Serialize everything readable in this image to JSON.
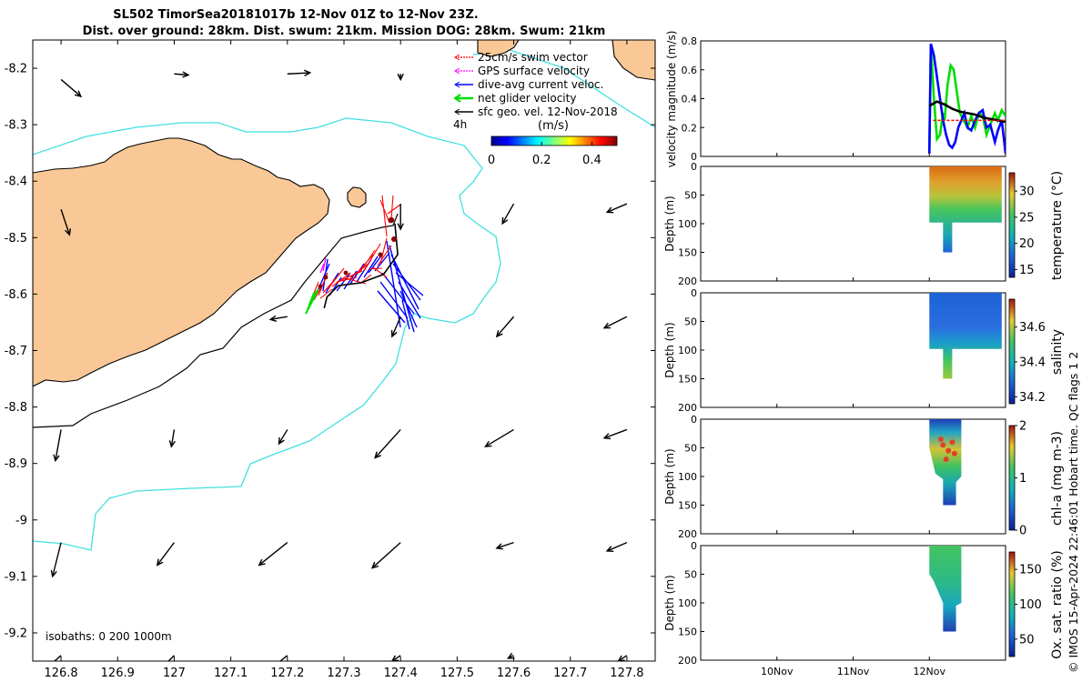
{
  "title_line1": "SL502 TimorSea20181017b 12-Nov 01Z to 12-Nov 23Z.",
  "title_line2": "Dist. over ground: 28km. Dist. swum: 21km. Mission DOG: 28km. Swum: 21km",
  "copyright": "© IMOS 15-Apr-2024 22:46:01 Hobart time. QC flags 1  2",
  "colors": {
    "land": "#f9c896",
    "coast": "#000000",
    "isobath_200": "#000000",
    "isobath_1000": "#40e0e0",
    "swim": "#ff0000",
    "gps": "#ff00ff",
    "current": "#0000ff",
    "net": "#00dd00",
    "geo": "#000000"
  },
  "chart_data": [
    {
      "type": "scatter",
      "name": "map",
      "x_ticks": [
        "126.8",
        "126.9",
        "127",
        "127.1",
        "127.2",
        "127.3",
        "127.4",
        "127.5",
        "127.6",
        "127.7",
        "127.8"
      ],
      "y_ticks": [
        "-8.2",
        "-8.3",
        "-8.4",
        "-8.5",
        "-8.6",
        "-8.7",
        "-8.8",
        "-8.9",
        "-9",
        "-9.1",
        "-9.2"
      ],
      "xlim": [
        126.75,
        127.85
      ],
      "ylim": [
        -9.25,
        -8.15
      ],
      "legend": {
        "placement": "top-right",
        "items": [
          {
            "label": "25cm/s swim vector",
            "color": "#ff0000"
          },
          {
            "label": "GPS surface velocity",
            "color": "#ff00ff"
          },
          {
            "label": "dive-avg current veloc.",
            "color": "#0000ff"
          },
          {
            "label": "net glider velocity",
            "color": "#00dd00"
          },
          {
            "label": "sfc geo. vel. 12-Nov-2018",
            "color": "#000000"
          }
        ],
        "duration_label": "4h",
        "colorbar_unit": "(m/s)",
        "colorbar_ticks": [
          "0",
          "0.2",
          "0.4"
        ],
        "colorbar_range": [
          0,
          0.5
        ]
      },
      "isobaths_label": "isobaths: 0   200  1000m",
      "geo_vectors": [
        {
          "lon": 126.8,
          "lat": -8.22,
          "dlon": 0.035,
          "dlat": -0.03
        },
        {
          "lon": 127.0,
          "lat": -8.21,
          "dlon": 0.025,
          "dlat": -0.002
        },
        {
          "lon": 127.2,
          "lat": -8.21,
          "dlon": 0.04,
          "dlat": 0.002
        },
        {
          "lon": 127.4,
          "lat": -8.21,
          "dlon": 0.0,
          "dlat": -0.01
        },
        {
          "lon": 126.8,
          "lat": -8.45,
          "dlon": 0.015,
          "dlat": -0.045
        },
        {
          "lon": 127.4,
          "lat": -8.44,
          "dlon": 0.0,
          "dlat": -0.045
        },
        {
          "lon": 127.6,
          "lat": -8.44,
          "dlon": -0.02,
          "dlat": -0.035
        },
        {
          "lon": 127.8,
          "lat": -8.44,
          "dlon": -0.035,
          "dlat": -0.015
        },
        {
          "lon": 127.2,
          "lat": -8.64,
          "dlon": -0.03,
          "dlat": -0.005
        },
        {
          "lon": 127.4,
          "lat": -8.64,
          "dlon": -0.015,
          "dlat": -0.035
        },
        {
          "lon": 127.6,
          "lat": -8.64,
          "dlon": -0.03,
          "dlat": -0.035
        },
        {
          "lon": 127.8,
          "lat": -8.64,
          "dlon": -0.04,
          "dlat": -0.02
        },
        {
          "lon": 126.8,
          "lat": -8.84,
          "dlon": -0.01,
          "dlat": -0.055
        },
        {
          "lon": 127.0,
          "lat": -8.84,
          "dlon": -0.005,
          "dlat": -0.03
        },
        {
          "lon": 127.2,
          "lat": -8.84,
          "dlon": -0.015,
          "dlat": -0.025
        },
        {
          "lon": 127.4,
          "lat": -8.84,
          "dlon": -0.045,
          "dlat": -0.05
        },
        {
          "lon": 127.6,
          "lat": -8.84,
          "dlon": -0.05,
          "dlat": -0.03
        },
        {
          "lon": 127.8,
          "lat": -8.84,
          "dlon": -0.04,
          "dlat": -0.015
        },
        {
          "lon": 126.8,
          "lat": -9.04,
          "dlon": -0.015,
          "dlat": -0.06
        },
        {
          "lon": 127.0,
          "lat": -9.04,
          "dlon": -0.03,
          "dlat": -0.04
        },
        {
          "lon": 127.2,
          "lat": -9.04,
          "dlon": -0.05,
          "dlat": -0.04
        },
        {
          "lon": 127.4,
          "lat": -9.04,
          "dlon": -0.05,
          "dlat": -0.045
        },
        {
          "lon": 127.6,
          "lat": -9.04,
          "dlon": -0.03,
          "dlat": -0.01
        },
        {
          "lon": 127.8,
          "lat": -9.04,
          "dlon": -0.035,
          "dlat": -0.015
        },
        {
          "lon": 126.8,
          "lat": -9.24,
          "dlon": -0.04,
          "dlat": -0.035
        },
        {
          "lon": 127.0,
          "lat": -9.24,
          "dlon": -0.05,
          "dlat": -0.05
        },
        {
          "lon": 127.2,
          "lat": -9.24,
          "dlon": -0.05,
          "dlat": -0.04
        },
        {
          "lon": 127.4,
          "lat": -9.24,
          "dlon": -0.015,
          "dlat": -0.01
        },
        {
          "lon": 127.6,
          "lat": -9.24,
          "dlon": -0.01,
          "dlat": -0.005
        },
        {
          "lon": 127.8,
          "lat": -9.24,
          "dlon": -0.015,
          "dlat": -0.01
        }
      ],
      "glider_track": [
        {
          "lon": 127.39,
          "lat": -8.475
        },
        {
          "lon": 127.395,
          "lat": -8.53
        },
        {
          "lon": 127.37,
          "lat": -8.565
        },
        {
          "lon": 127.33,
          "lat": -8.58
        },
        {
          "lon": 127.29,
          "lat": -8.585
        },
        {
          "lon": 127.27,
          "lat": -8.605
        },
        {
          "lon": 127.265,
          "lat": -8.625
        }
      ]
    },
    {
      "type": "line",
      "name": "velocity",
      "ylabel": "velocity magnitude (m/s)",
      "ylim": [
        0,
        0.8
      ],
      "y_ticks": [
        "0",
        "0.2",
        "0.4",
        "0.6",
        "0.8"
      ],
      "x_ticks": [
        "10Nov",
        "11Nov",
        "12Nov"
      ],
      "xlim": [
        9.0,
        13.0
      ],
      "series": [
        {
          "color": "#00dd00",
          "x": [
            12.0,
            12.02,
            12.06,
            12.1,
            12.14,
            12.18,
            12.2,
            12.24,
            12.28,
            12.32,
            12.36,
            12.4,
            12.45,
            12.5,
            12.55,
            12.6,
            12.65,
            12.7,
            12.75,
            12.8,
            12.86,
            12.9,
            12.95,
            13.0
          ],
          "y": [
            0.02,
            0.78,
            0.4,
            0.12,
            0.15,
            0.3,
            0.25,
            0.5,
            0.63,
            0.6,
            0.45,
            0.3,
            0.25,
            0.2,
            0.28,
            0.2,
            0.3,
            0.28,
            0.15,
            0.22,
            0.3,
            0.25,
            0.32,
            0.28
          ]
        },
        {
          "color": "#0000ff",
          "x": [
            12.0,
            12.02,
            12.06,
            12.1,
            12.14,
            12.18,
            12.22,
            12.26,
            12.3,
            12.34,
            12.38,
            12.42,
            12.46,
            12.5,
            12.55,
            12.6,
            12.65,
            12.7,
            12.75,
            12.8,
            12.86,
            12.9,
            12.95,
            13.0
          ],
          "y": [
            0.02,
            0.78,
            0.7,
            0.55,
            0.4,
            0.25,
            0.15,
            0.08,
            0.06,
            0.1,
            0.2,
            0.25,
            0.3,
            0.2,
            0.18,
            0.25,
            0.3,
            0.32,
            0.2,
            0.22,
            0.1,
            0.18,
            0.25,
            0.02
          ]
        },
        {
          "color": "#000000",
          "x": [
            12.0,
            12.1,
            12.2,
            12.3,
            12.4,
            12.5,
            12.6,
            12.7,
            12.8,
            12.9,
            13.0
          ],
          "y": [
            0.35,
            0.38,
            0.36,
            0.33,
            0.31,
            0.3,
            0.29,
            0.27,
            0.26,
            0.25,
            0.24
          ]
        },
        {
          "color": "#ff0000",
          "dashed": true,
          "x": [
            12.05,
            13.0
          ],
          "y": [
            0.25,
            0.25
          ]
        }
      ]
    },
    {
      "type": "scatter",
      "name": "temperature",
      "ylabel": "Depth (m)",
      "clabel": "temperature (°C)",
      "y_ticks": [
        "0",
        "50",
        "100",
        "150",
        "200"
      ],
      "c_ticks": [
        "15",
        "20",
        "25",
        "30"
      ],
      "clim": [
        13.5,
        33.5
      ]
    },
    {
      "type": "scatter",
      "name": "salinity",
      "ylabel": "Depth (m)",
      "clabel": "salinity",
      "y_ticks": [
        "0",
        "50",
        "100",
        "150",
        "200"
      ],
      "c_ticks": [
        "34.2",
        "34.4",
        "34.6"
      ],
      "clim": [
        34.16,
        34.76
      ]
    },
    {
      "type": "scatter",
      "name": "chla",
      "ylabel": "Depth (m)",
      "clabel": "chl-a (mg m-3)",
      "y_ticks": [
        "0",
        "50",
        "100",
        "150",
        "200"
      ],
      "c_ticks": [
        "0",
        "1",
        "2"
      ],
      "clim": [
        0,
        2
      ]
    },
    {
      "type": "scatter",
      "name": "oxygen",
      "ylabel": "Depth (m)",
      "clabel": "Ox. sat. ratio (%)",
      "y_ticks": [
        "0",
        "50",
        "100",
        "150",
        "200"
      ],
      "c_ticks": [
        "50",
        "100",
        "150"
      ],
      "clim": [
        25,
        175
      ],
      "x_ticks": [
        "10Nov",
        "11Nov",
        "12Nov"
      ]
    }
  ]
}
